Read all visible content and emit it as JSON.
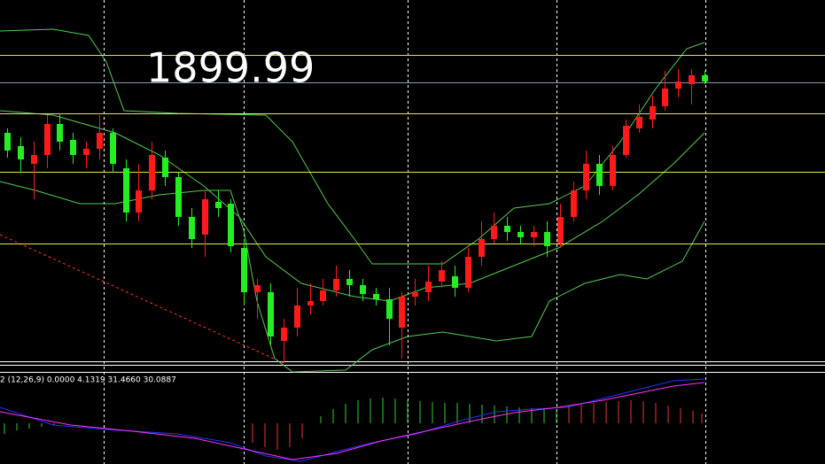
{
  "chart_data": {
    "type": "candlestick",
    "annotation": "1899.99",
    "indicator_label": "2 (12,26,9) 0.0000 4.1319 31.4660 30.0887",
    "open": [
      1890,
      1887,
      1883,
      1885,
      1892,
      1888.4,
      1885,
      1886.4,
      1890,
      1882,
      1872,
      1877,
      1884.4,
      1880,
      1871,
      1867,
      1874.4,
      1874,
      1864,
      1854,
      1854,
      1843,
      1846,
      1851,
      1852,
      1854.4,
      1857,
      1855.6,
      1853.6,
      1852.4,
      1846,
      1853,
      1854,
      1856.4,
      1857.6,
      1855,
      1862,
      1866,
      1869,
      1867.6,
      1866.4,
      1867.6,
      1865,
      1871,
      1877,
      1883,
      1878,
      1885,
      1891,
      1893,
      1896,
      1900,
      1901,
      1903
    ],
    "high": [
      1891,
      1889,
      1888,
      1894,
      1894.4,
      1890,
      1888,
      1894,
      1891,
      1884,
      1883,
      1888,
      1886,
      1881,
      1873,
      1877,
      1877,
      1875,
      1866,
      1857,
      1856,
      1848,
      1855,
      1856,
      1857,
      1860,
      1859,
      1857,
      1855,
      1855,
      1854,
      1857,
      1860,
      1861,
      1860,
      1864,
      1870,
      1872,
      1871,
      1869,
      1869,
      1870,
      1874,
      1879,
      1886,
      1885,
      1887,
      1893,
      1896.4,
      1898.4,
      1904,
      1904.4,
      1904.4,
      1904
    ],
    "low": [
      1884.4,
      1881,
      1875,
      1882,
      1886,
      1883,
      1882,
      1884,
      1881,
      1870,
      1870,
      1875,
      1878,
      1869,
      1864,
      1862,
      1871,
      1863,
      1851,
      1848,
      1842,
      1838,
      1844,
      1849,
      1851,
      1853,
      1853,
      1852,
      1851,
      1842,
      1839,
      1851,
      1852,
      1855,
      1853,
      1854,
      1860,
      1865,
      1865.6,
      1865,
      1864.4,
      1862,
      1864,
      1870,
      1875,
      1876,
      1877,
      1884.4,
      1890,
      1891,
      1895,
      1898,
      1896.4,
      1901
    ],
    "close": [
      1886,
      1884,
      1885,
      1892,
      1888,
      1885,
      1886.4,
      1890,
      1883,
      1872,
      1877,
      1885,
      1880,
      1871,
      1866,
      1875,
      1873,
      1864.4,
      1854,
      1855.6,
      1844,
      1846,
      1851,
      1852,
      1854.4,
      1857,
      1855.6,
      1853.6,
      1852.4,
      1848,
      1853,
      1854,
      1856.4,
      1859,
      1855,
      1862,
      1866,
      1869,
      1867.6,
      1866.4,
      1867.6,
      1864.4,
      1871,
      1877,
      1883,
      1878,
      1885,
      1891.6,
      1893.6,
      1896,
      1900,
      1901.6,
      1903,
      1901.6
    ],
    "up_color": "#ff1a1a",
    "down_color": "#22ee22",
    "ylim": [
      1836,
      1920
    ],
    "levels": [
      {
        "value": 1907.6,
        "color": "#e6e64d"
      },
      {
        "value": 1901.4,
        "color": "#8a9bb0"
      },
      {
        "value": 1894.4,
        "color": "#e6e64d"
      },
      {
        "value": 1881.2,
        "color": "#e6e64d"
      },
      {
        "value": 1865,
        "color": "#e6e64d"
      }
    ]
  }
}
